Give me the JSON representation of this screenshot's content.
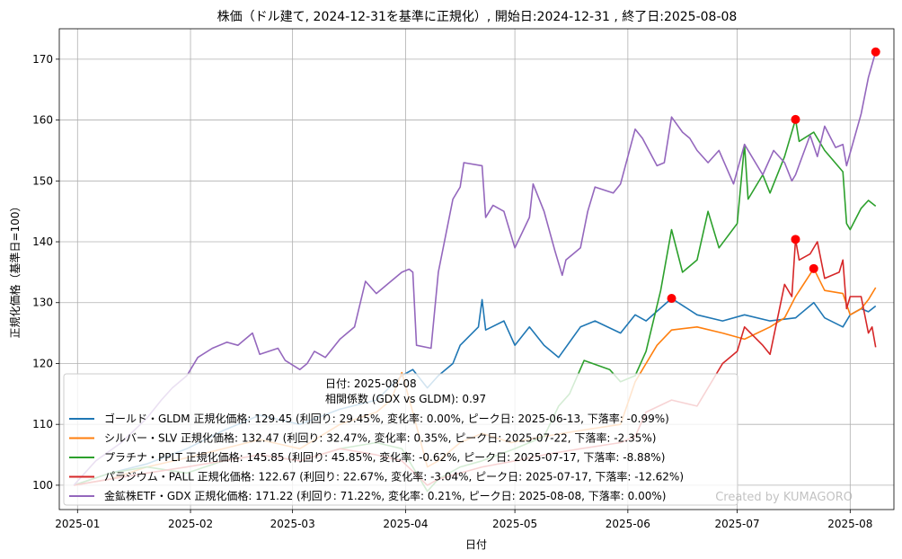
{
  "chart_data": {
    "type": "line",
    "title": "株価（ドル建て, 2024-12-31を基準に正規化）, 開始日:2024-12-31 , 終了日:2025-08-08",
    "xlabel": "日付",
    "ylabel": "正規化価格（基準日=100）",
    "ylim": [
      96,
      175
    ],
    "xlim": [
      "2024-12-27",
      "2025-08-13"
    ],
    "x_ticks": [
      "2025-01",
      "2025-02",
      "2025-03",
      "2025-04",
      "2025-05",
      "2025-06",
      "2025-07",
      "2025-08"
    ],
    "y_ticks": [
      100,
      110,
      120,
      130,
      140,
      150,
      160,
      170
    ],
    "grid": true,
    "legend_position": "lower-left",
    "legend_header": [
      "日付: 2025-08-08",
      "相関係数 (GDX vs GLDM): 0.97"
    ],
    "watermark": "Created by KUMAGORO",
    "series": [
      {
        "name": "ゴールド・GLDM",
        "legend": "ゴールド・GLDM 正規化価格: 129.45 (利回り: 29.45%, 変化率: 0.00%, ピーク日: 2025-06-13, 下落率: -0.99%)",
        "color": "#1f77b4",
        "peak": {
          "x": "2025-06-13",
          "y": 130.7
        },
        "points": [
          [
            "2024-12-31",
            100
          ],
          [
            "2025-01-10",
            102
          ],
          [
            "2025-01-20",
            103.5
          ],
          [
            "2025-01-31",
            106
          ],
          [
            "2025-02-10",
            109
          ],
          [
            "2025-02-20",
            111.5
          ],
          [
            "2025-03-03",
            110
          ],
          [
            "2025-03-14",
            112.5
          ],
          [
            "2025-03-24",
            114
          ],
          [
            "2025-03-31",
            118
          ],
          [
            "2025-04-03",
            119
          ],
          [
            "2025-04-07",
            116
          ],
          [
            "2025-04-10",
            118
          ],
          [
            "2025-04-14",
            120
          ],
          [
            "2025-04-16",
            123
          ],
          [
            "2025-04-21",
            126
          ],
          [
            "2025-04-22",
            130.5
          ],
          [
            "2025-04-23",
            125.5
          ],
          [
            "2025-04-28",
            127
          ],
          [
            "2025-05-01",
            123
          ],
          [
            "2025-05-05",
            126
          ],
          [
            "2025-05-09",
            123
          ],
          [
            "2025-05-13",
            121
          ],
          [
            "2025-05-19",
            126
          ],
          [
            "2025-05-23",
            127
          ],
          [
            "2025-05-30",
            125
          ],
          [
            "2025-06-03",
            128
          ],
          [
            "2025-06-06",
            127
          ],
          [
            "2025-06-13",
            130.7
          ],
          [
            "2025-06-20",
            128
          ],
          [
            "2025-06-27",
            127
          ],
          [
            "2025-07-03",
            128
          ],
          [
            "2025-07-10",
            127
          ],
          [
            "2025-07-17",
            127.5
          ],
          [
            "2025-07-22",
            130
          ],
          [
            "2025-07-25",
            127.5
          ],
          [
            "2025-07-30",
            126
          ],
          [
            "2025-08-01",
            128
          ],
          [
            "2025-08-04",
            129
          ],
          [
            "2025-08-06",
            128.5
          ],
          [
            "2025-08-08",
            129.45
          ]
        ]
      },
      {
        "name": "シルバー・SLV",
        "legend": "シルバー・SLV 正規化価格: 132.47 (利回り: 32.47%, 変化率: 0.35%, ピーク日: 2025-07-22, 下落率: -2.35%)",
        "color": "#ff7f0e",
        "peak": {
          "x": "2025-07-22",
          "y": 135.6
        },
        "points": [
          [
            "2024-12-31",
            100
          ],
          [
            "2025-01-10",
            101
          ],
          [
            "2025-01-20",
            103
          ],
          [
            "2025-01-31",
            104.5
          ],
          [
            "2025-02-10",
            106
          ],
          [
            "2025-02-20",
            107.5
          ],
          [
            "2025-03-03",
            106
          ],
          [
            "2025-03-14",
            110
          ],
          [
            "2025-03-24",
            112
          ],
          [
            "2025-03-28",
            114
          ],
          [
            "2025-03-31",
            118.5
          ],
          [
            "2025-04-03",
            112
          ],
          [
            "2025-04-07",
            103
          ],
          [
            "2025-04-10",
            104
          ],
          [
            "2025-04-16",
            107
          ],
          [
            "2025-04-22",
            108.5
          ],
          [
            "2025-04-30",
            107
          ],
          [
            "2025-05-09",
            108
          ],
          [
            "2025-05-19",
            109
          ],
          [
            "2025-05-30",
            110
          ],
          [
            "2025-06-03",
            117
          ],
          [
            "2025-06-06",
            120
          ],
          [
            "2025-06-09",
            123
          ],
          [
            "2025-06-13",
            125.5
          ],
          [
            "2025-06-20",
            126
          ],
          [
            "2025-06-27",
            125
          ],
          [
            "2025-07-03",
            124
          ],
          [
            "2025-07-10",
            126
          ],
          [
            "2025-07-14",
            127.5
          ],
          [
            "2025-07-17",
            131
          ],
          [
            "2025-07-22",
            135.6
          ],
          [
            "2025-07-25",
            132
          ],
          [
            "2025-07-30",
            131.5
          ],
          [
            "2025-08-01",
            128
          ],
          [
            "2025-08-04",
            129
          ],
          [
            "2025-08-06",
            130.5
          ],
          [
            "2025-08-08",
            132.47
          ]
        ]
      },
      {
        "name": "プラチナ・PPLT",
        "legend": "プラチナ・PPLT 正規化価格: 145.85 (利回り: 45.85%, 変化率: -0.62%, ピーク日: 2025-07-17, 下落率: -8.88%)",
        "color": "#2ca02c",
        "peak": {
          "x": "2025-07-17",
          "y": 160.1
        },
        "points": [
          [
            "2024-12-31",
            100
          ],
          [
            "2025-01-10",
            102
          ],
          [
            "2025-01-20",
            103
          ],
          [
            "2025-01-31",
            102
          ],
          [
            "2025-02-10",
            104
          ],
          [
            "2025-02-20",
            105
          ],
          [
            "2025-03-03",
            104
          ],
          [
            "2025-03-14",
            106
          ],
          [
            "2025-03-24",
            107
          ],
          [
            "2025-03-31",
            106
          ],
          [
            "2025-04-07",
            99
          ],
          [
            "2025-04-10",
            101
          ],
          [
            "2025-04-16",
            103
          ],
          [
            "2025-04-22",
            104
          ],
          [
            "2025-05-01",
            106
          ],
          [
            "2025-05-09",
            108
          ],
          [
            "2025-05-13",
            113
          ],
          [
            "2025-05-16",
            115
          ],
          [
            "2025-05-20",
            120.5
          ],
          [
            "2025-05-27",
            119
          ],
          [
            "2025-05-30",
            117
          ],
          [
            "2025-06-03",
            118
          ],
          [
            "2025-06-06",
            122
          ],
          [
            "2025-06-10",
            132
          ],
          [
            "2025-06-13",
            142
          ],
          [
            "2025-06-16",
            135
          ],
          [
            "2025-06-20",
            137
          ],
          [
            "2025-06-23",
            145
          ],
          [
            "2025-06-26",
            139
          ],
          [
            "2025-07-01",
            143
          ],
          [
            "2025-07-03",
            156
          ],
          [
            "2025-07-04",
            147
          ],
          [
            "2025-07-08",
            151
          ],
          [
            "2025-07-10",
            148
          ],
          [
            "2025-07-14",
            154
          ],
          [
            "2025-07-17",
            160.1
          ],
          [
            "2025-07-18",
            156.5
          ],
          [
            "2025-07-22",
            158
          ],
          [
            "2025-07-25",
            155
          ],
          [
            "2025-07-30",
            151.5
          ],
          [
            "2025-07-31",
            143
          ],
          [
            "2025-08-01",
            142
          ],
          [
            "2025-08-04",
            145.5
          ],
          [
            "2025-08-06",
            146.8
          ],
          [
            "2025-08-08",
            145.85
          ]
        ]
      },
      {
        "name": "パラジウム・PALL",
        "legend": "パラジウム・PALL 正規化価格: 122.67 (利回り: 22.67%, 変化率: -3.04%, ピーク日: 2025-07-17, 下落率: -12.62%)",
        "color": "#d62728",
        "peak": {
          "x": "2025-07-17",
          "y": 140.4
        },
        "points": [
          [
            "2024-12-31",
            100
          ],
          [
            "2025-01-10",
            101
          ],
          [
            "2025-01-20",
            102
          ],
          [
            "2025-01-31",
            103
          ],
          [
            "2025-02-10",
            104
          ],
          [
            "2025-02-20",
            105
          ],
          [
            "2025-03-03",
            104
          ],
          [
            "2025-03-14",
            106
          ],
          [
            "2025-03-24",
            105
          ],
          [
            "2025-03-31",
            104
          ],
          [
            "2025-04-07",
            100
          ],
          [
            "2025-04-10",
            101
          ],
          [
            "2025-04-16",
            102
          ],
          [
            "2025-04-22",
            103
          ],
          [
            "2025-05-01",
            104
          ],
          [
            "2025-05-09",
            105
          ],
          [
            "2025-05-19",
            106
          ],
          [
            "2025-05-30",
            107
          ],
          [
            "2025-06-03",
            108
          ],
          [
            "2025-06-06",
            112
          ],
          [
            "2025-06-13",
            114
          ],
          [
            "2025-06-20",
            113
          ],
          [
            "2025-06-27",
            120
          ],
          [
            "2025-07-01",
            122
          ],
          [
            "2025-07-03",
            126
          ],
          [
            "2025-07-08",
            123
          ],
          [
            "2025-07-10",
            121.5
          ],
          [
            "2025-07-14",
            133
          ],
          [
            "2025-07-16",
            131
          ],
          [
            "2025-07-17",
            140.4
          ],
          [
            "2025-07-18",
            137
          ],
          [
            "2025-07-21",
            138
          ],
          [
            "2025-07-23",
            140
          ],
          [
            "2025-07-25",
            134
          ],
          [
            "2025-07-29",
            135
          ],
          [
            "2025-07-30",
            137
          ],
          [
            "2025-07-31",
            129
          ],
          [
            "2025-08-01",
            131
          ],
          [
            "2025-08-04",
            131
          ],
          [
            "2025-08-06",
            125
          ],
          [
            "2025-08-07",
            126
          ],
          [
            "2025-08-08",
            122.67
          ]
        ]
      },
      {
        "name": "金鉱株ETF・GDX",
        "legend": "金鉱株ETF・GDX 正規化価格: 171.22 (利回り: 71.22%, 変化率: 0.21%, ピーク日: 2025-08-08, 下落率: 0.00%)",
        "color": "#9467bd",
        "peak": {
          "x": "2025-08-08",
          "y": 171.2
        },
        "points": [
          [
            "2024-12-31",
            100
          ],
          [
            "2025-01-06",
            104
          ],
          [
            "2025-01-13",
            107
          ],
          [
            "2025-01-20",
            111
          ],
          [
            "2025-01-24",
            114
          ],
          [
            "2025-01-27",
            116
          ],
          [
            "2025-01-31",
            118
          ],
          [
            "2025-02-03",
            121
          ],
          [
            "2025-02-07",
            122.5
          ],
          [
            "2025-02-11",
            123.5
          ],
          [
            "2025-02-14",
            123
          ],
          [
            "2025-02-18",
            125
          ],
          [
            "2025-02-20",
            121.5
          ],
          [
            "2025-02-25",
            122.5
          ],
          [
            "2025-02-27",
            120.5
          ],
          [
            "2025-03-03",
            119
          ],
          [
            "2025-03-05",
            120
          ],
          [
            "2025-03-07",
            122
          ],
          [
            "2025-03-10",
            121
          ],
          [
            "2025-03-14",
            124
          ],
          [
            "2025-03-18",
            126
          ],
          [
            "2025-03-21",
            133.5
          ],
          [
            "2025-03-24",
            131.5
          ],
          [
            "2025-03-27",
            133
          ],
          [
            "2025-03-31",
            135
          ],
          [
            "2025-04-02",
            135.5
          ],
          [
            "2025-04-03",
            135
          ],
          [
            "2025-04-04",
            123
          ],
          [
            "2025-04-08",
            122.5
          ],
          [
            "2025-04-10",
            135
          ],
          [
            "2025-04-14",
            147
          ],
          [
            "2025-04-16",
            149
          ],
          [
            "2025-04-17",
            153
          ],
          [
            "2025-04-22",
            152.5
          ],
          [
            "2025-04-23",
            144
          ],
          [
            "2025-04-25",
            146
          ],
          [
            "2025-04-28",
            145
          ],
          [
            "2025-05-01",
            139
          ],
          [
            "2025-05-05",
            144
          ],
          [
            "2025-05-06",
            149.5
          ],
          [
            "2025-05-09",
            145
          ],
          [
            "2025-05-12",
            138.5
          ],
          [
            "2025-05-14",
            134.5
          ],
          [
            "2025-05-15",
            137
          ],
          [
            "2025-05-19",
            139
          ],
          [
            "2025-05-21",
            145
          ],
          [
            "2025-05-23",
            149
          ],
          [
            "2025-05-28",
            148
          ],
          [
            "2025-05-30",
            149.5
          ],
          [
            "2025-06-03",
            158.5
          ],
          [
            "2025-06-05",
            157
          ],
          [
            "2025-06-09",
            152.5
          ],
          [
            "2025-06-11",
            153
          ],
          [
            "2025-06-13",
            160.5
          ],
          [
            "2025-06-16",
            158
          ],
          [
            "2025-06-18",
            157
          ],
          [
            "2025-06-20",
            155
          ],
          [
            "2025-06-23",
            153
          ],
          [
            "2025-06-26",
            155
          ],
          [
            "2025-06-30",
            149.5
          ],
          [
            "2025-07-03",
            156
          ],
          [
            "2025-07-08",
            151
          ],
          [
            "2025-07-11",
            155
          ],
          [
            "2025-07-14",
            153
          ],
          [
            "2025-07-16",
            150
          ],
          [
            "2025-07-17",
            151
          ],
          [
            "2025-07-21",
            157.5
          ],
          [
            "2025-07-23",
            154
          ],
          [
            "2025-07-25",
            159
          ],
          [
            "2025-07-28",
            155.5
          ],
          [
            "2025-07-30",
            156
          ],
          [
            "2025-07-31",
            152.5
          ],
          [
            "2025-08-04",
            161
          ],
          [
            "2025-08-06",
            167
          ],
          [
            "2025-08-08",
            171.22
          ]
        ]
      }
    ]
  }
}
